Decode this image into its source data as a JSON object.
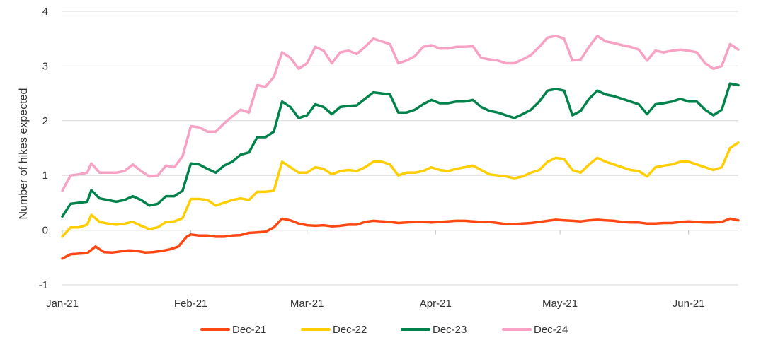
{
  "chart_data": {
    "type": "line",
    "title": "",
    "xlabel": "",
    "ylabel": "Number of hikes expected",
    "ylim": [
      -1,
      4
    ],
    "yticks": [
      -1,
      0,
      1,
      2,
      3,
      4
    ],
    "x_ticks": [
      {
        "label": "Jan-21",
        "x": 0
      },
      {
        "label": "Feb-21",
        "x": 31
      },
      {
        "label": "Mar-21",
        "x": 59
      },
      {
        "label": "Apr-21",
        "x": 90
      },
      {
        "label": "May-21",
        "x": 120
      },
      {
        "label": "Jun-21",
        "x": 151
      }
    ],
    "xlim": [
      0,
      163
    ],
    "grid": "horizontal",
    "legend_position": "bottom",
    "series": [
      {
        "name": "Dec-21",
        "color": "#FF4713",
        "x": [
          0,
          2,
          4,
          6,
          8,
          10,
          12,
          14,
          16,
          18,
          20,
          22,
          24,
          26,
          28,
          30,
          31,
          33,
          35,
          37,
          39,
          41,
          43,
          45,
          47,
          49,
          51,
          53,
          55,
          57,
          59,
          61,
          63,
          65,
          67,
          69,
          71,
          73,
          75,
          77,
          79,
          81,
          83,
          85,
          87,
          89,
          91,
          93,
          95,
          97,
          99,
          101,
          103,
          105,
          107,
          109,
          111,
          113,
          115,
          117,
          119,
          121,
          123,
          125,
          127,
          129,
          131,
          133,
          135,
          137,
          139,
          141,
          143,
          145,
          147,
          149,
          151,
          153,
          155,
          157,
          159,
          161,
          163
        ],
        "values": [
          -0.52,
          -0.44,
          -0.43,
          -0.42,
          -0.3,
          -0.4,
          -0.41,
          -0.39,
          -0.37,
          -0.38,
          -0.41,
          -0.4,
          -0.38,
          -0.35,
          -0.3,
          -0.12,
          -0.08,
          -0.1,
          -0.1,
          -0.12,
          -0.12,
          -0.1,
          -0.09,
          -0.05,
          -0.04,
          -0.03,
          0.05,
          0.21,
          0.18,
          0.12,
          0.09,
          0.08,
          0.09,
          0.07,
          0.08,
          0.1,
          0.1,
          0.15,
          0.17,
          0.16,
          0.15,
          0.13,
          0.14,
          0.15,
          0.15,
          0.14,
          0.15,
          0.16,
          0.17,
          0.17,
          0.16,
          0.15,
          0.15,
          0.13,
          0.11,
          0.11,
          0.12,
          0.13,
          0.15,
          0.17,
          0.19,
          0.18,
          0.17,
          0.16,
          0.18,
          0.19,
          0.18,
          0.17,
          0.15,
          0.14,
          0.14,
          0.12,
          0.12,
          0.13,
          0.13,
          0.15,
          0.16,
          0.15,
          0.14,
          0.14,
          0.15,
          0.21,
          0.18
        ]
      },
      {
        "name": "Dec-22",
        "color": "#FFCE00",
        "x": [
          0,
          2,
          4,
          6,
          7,
          9,
          11,
          13,
          15,
          17,
          19,
          21,
          23,
          25,
          27,
          29,
          31,
          33,
          35,
          37,
          39,
          41,
          43,
          45,
          47,
          49,
          51,
          53,
          55,
          57,
          59,
          61,
          63,
          65,
          67,
          69,
          71,
          73,
          75,
          77,
          79,
          81,
          83,
          85,
          87,
          89,
          91,
          93,
          95,
          97,
          99,
          101,
          103,
          105,
          107,
          109,
          111,
          113,
          115,
          117,
          119,
          121,
          123,
          125,
          127,
          129,
          131,
          133,
          135,
          137,
          139,
          141,
          143,
          145,
          147,
          149,
          151,
          153,
          155,
          157,
          159,
          161,
          163
        ],
        "values": [
          -0.12,
          0.05,
          0.05,
          0.1,
          0.28,
          0.15,
          0.12,
          0.1,
          0.12,
          0.15,
          0.08,
          0.02,
          0.05,
          0.15,
          0.16,
          0.22,
          0.57,
          0.57,
          0.55,
          0.45,
          0.5,
          0.55,
          0.58,
          0.55,
          0.7,
          0.7,
          0.72,
          1.25,
          1.15,
          1.05,
          1.05,
          1.15,
          1.12,
          1.02,
          1.08,
          1.1,
          1.08,
          1.15,
          1.25,
          1.25,
          1.2,
          1.0,
          1.05,
          1.05,
          1.08,
          1.15,
          1.1,
          1.08,
          1.12,
          1.15,
          1.18,
          1.1,
          1.02,
          1.0,
          0.98,
          0.95,
          0.98,
          1.05,
          1.1,
          1.25,
          1.32,
          1.3,
          1.1,
          1.05,
          1.2,
          1.32,
          1.25,
          1.2,
          1.15,
          1.1,
          1.08,
          0.98,
          1.15,
          1.18,
          1.2,
          1.25,
          1.25,
          1.2,
          1.15,
          1.1,
          1.15,
          1.5,
          1.6
        ]
      },
      {
        "name": "Dec-23",
        "color": "#00824B",
        "x": [
          0,
          2,
          4,
          6,
          7,
          9,
          11,
          13,
          15,
          17,
          19,
          21,
          23,
          25,
          27,
          29,
          31,
          33,
          35,
          37,
          39,
          41,
          43,
          45,
          47,
          49,
          51,
          53,
          55,
          57,
          59,
          61,
          63,
          65,
          67,
          69,
          71,
          73,
          75,
          77,
          79,
          81,
          83,
          85,
          87,
          89,
          91,
          93,
          95,
          97,
          99,
          101,
          103,
          105,
          107,
          109,
          111,
          113,
          115,
          117,
          119,
          121,
          123,
          125,
          127,
          129,
          131,
          133,
          135,
          137,
          139,
          141,
          143,
          145,
          147,
          149,
          151,
          153,
          155,
          157,
          159,
          161,
          163
        ],
        "values": [
          0.25,
          0.48,
          0.5,
          0.52,
          0.73,
          0.58,
          0.55,
          0.52,
          0.55,
          0.62,
          0.55,
          0.45,
          0.48,
          0.62,
          0.62,
          0.72,
          1.22,
          1.2,
          1.12,
          1.05,
          1.18,
          1.25,
          1.38,
          1.42,
          1.7,
          1.7,
          1.8,
          2.35,
          2.25,
          2.05,
          2.1,
          2.3,
          2.25,
          2.12,
          2.25,
          2.27,
          2.28,
          2.4,
          2.52,
          2.5,
          2.48,
          2.15,
          2.15,
          2.2,
          2.3,
          2.38,
          2.32,
          2.32,
          2.35,
          2.35,
          2.38,
          2.25,
          2.18,
          2.15,
          2.1,
          2.05,
          2.12,
          2.2,
          2.35,
          2.55,
          2.58,
          2.55,
          2.1,
          2.18,
          2.4,
          2.55,
          2.48,
          2.45,
          2.4,
          2.35,
          2.3,
          2.12,
          2.3,
          2.32,
          2.35,
          2.4,
          2.35,
          2.35,
          2.2,
          2.1,
          2.2,
          2.68,
          2.65
        ]
      },
      {
        "name": "Dec-24",
        "color": "#F7A1C4",
        "x": [
          0,
          2,
          4,
          6,
          7,
          9,
          11,
          13,
          15,
          17,
          19,
          21,
          23,
          25,
          27,
          29,
          31,
          33,
          35,
          37,
          39,
          41,
          43,
          45,
          47,
          49,
          51,
          53,
          55,
          57,
          59,
          61,
          63,
          65,
          67,
          69,
          71,
          73,
          75,
          77,
          79,
          81,
          83,
          85,
          87,
          89,
          91,
          93,
          95,
          97,
          99,
          101,
          103,
          105,
          107,
          109,
          111,
          113,
          115,
          117,
          119,
          121,
          123,
          125,
          127,
          129,
          131,
          133,
          135,
          137,
          139,
          141,
          143,
          145,
          147,
          149,
          151,
          153,
          155,
          157,
          159,
          161,
          163
        ],
        "values": [
          0.72,
          1.0,
          1.02,
          1.05,
          1.22,
          1.05,
          1.05,
          1.05,
          1.08,
          1.2,
          1.08,
          0.98,
          1.0,
          1.18,
          1.15,
          1.35,
          1.9,
          1.88,
          1.8,
          1.8,
          1.95,
          2.08,
          2.2,
          2.15,
          2.65,
          2.62,
          2.8,
          3.25,
          3.15,
          2.95,
          3.05,
          3.35,
          3.28,
          3.05,
          3.25,
          3.28,
          3.22,
          3.35,
          3.5,
          3.45,
          3.4,
          3.05,
          3.1,
          3.18,
          3.35,
          3.38,
          3.32,
          3.32,
          3.35,
          3.35,
          3.36,
          3.15,
          3.12,
          3.1,
          3.05,
          3.05,
          3.12,
          3.2,
          3.35,
          3.52,
          3.55,
          3.5,
          3.1,
          3.12,
          3.35,
          3.55,
          3.45,
          3.42,
          3.38,
          3.35,
          3.3,
          3.1,
          3.28,
          3.25,
          3.28,
          3.3,
          3.28,
          3.25,
          3.05,
          2.95,
          3.0,
          3.4,
          3.3
        ]
      }
    ]
  }
}
